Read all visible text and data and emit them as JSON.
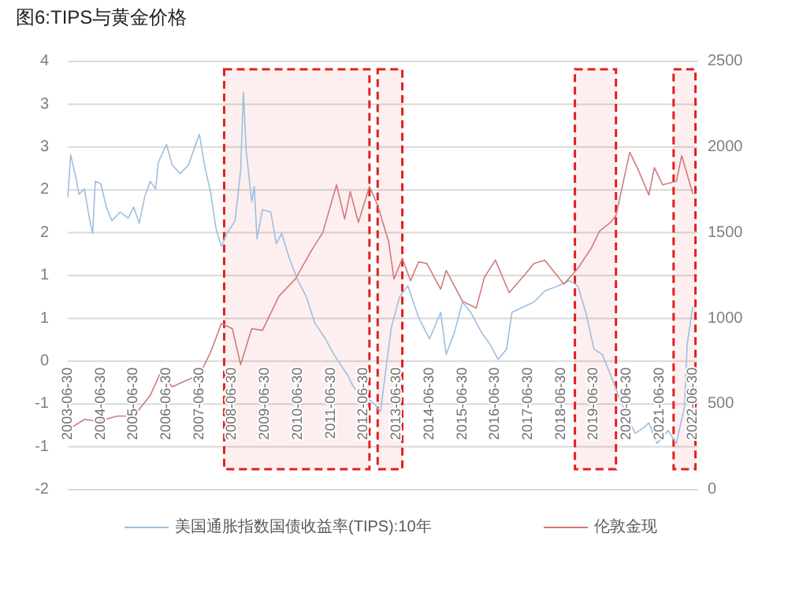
{
  "chart_data": {
    "type": "line",
    "title": "图6:TIPS与黄金价格",
    "xlim": [
      "2003-06-30",
      "2022-08-31"
    ],
    "xticks": [
      "2003-06-30",
      "2004-06-30",
      "2005-06-30",
      "2006-06-30",
      "2007-06-30",
      "2008-06-30",
      "2009-06-30",
      "2010-06-30",
      "2011-06-30",
      "2012-06-30",
      "2013-06-30",
      "2014-06-30",
      "2015-06-30",
      "2016-06-30",
      "2017-06-30",
      "2018-06-30",
      "2019-06-30",
      "2020-06-30",
      "2021-06-30",
      "2022-06-30"
    ],
    "ylim": [
      -1.5,
      3.5
    ],
    "yticks": [
      {
        "value": 3.5,
        "label": "4"
      },
      {
        "value": 3,
        "label": "3"
      },
      {
        "value": 2.5,
        "label": "3"
      },
      {
        "value": 2,
        "label": "2"
      },
      {
        "value": 1.5,
        "label": "2"
      },
      {
        "value": 1,
        "label": "1"
      },
      {
        "value": 0.5,
        "label": "1"
      },
      {
        "value": 0,
        "label": "0"
      },
      {
        "value": -0.5,
        "label": "-1"
      },
      {
        "value": -1,
        "label": "-1"
      },
      {
        "value": -1.5,
        "label": "-2"
      }
    ],
    "y2lim": [
      0,
      2500
    ],
    "y2ticks": [
      0,
      500,
      1000,
      1500,
      2000,
      2500
    ],
    "grid": "y",
    "legend": "bottom",
    "bands": [
      {
        "axis": "x",
        "from": "2008-04",
        "to": "2012-09",
        "color": "#e02020"
      },
      {
        "axis": "x",
        "from": "2012-12",
        "to": "2013-09",
        "color": "#e02020"
      },
      {
        "axis": "x",
        "from": "2018-12",
        "to": "2020-03",
        "color": "#e02020"
      },
      {
        "axis": "x",
        "from": "2021-12",
        "to": "2022-08",
        "color": "#e02020"
      }
    ],
    "series": [
      {
        "name": "美国通胀指数国债收益率(TIPS):10年",
        "color": "#9dbfdf",
        "x": [
          "2003-07",
          "2003-08",
          "2003-10",
          "2003-11",
          "2004-01",
          "2004-03",
          "2004-04",
          "2004-05",
          "2004-07",
          "2004-09",
          "2004-11",
          "2005-02",
          "2005-05",
          "2005-07",
          "2005-09",
          "2005-11",
          "2006-01",
          "2006-03",
          "2006-04",
          "2006-07",
          "2006-09",
          "2006-12",
          "2007-03",
          "2007-07",
          "2007-09",
          "2007-11",
          "2008-01",
          "2008-03",
          "2008-05",
          "2008-08",
          "2008-10",
          "2008-11",
          "2008-12",
          "2009-02",
          "2009-03",
          "2009-04",
          "2009-06",
          "2009-09",
          "2009-11",
          "2010-01",
          "2010-04",
          "2010-07",
          "2010-10",
          "2011-01",
          "2011-05",
          "2011-08",
          "2012-01",
          "2012-03",
          "2012-06",
          "2012-10",
          "2013-01",
          "2013-05",
          "2013-08",
          "2013-11",
          "2014-03",
          "2014-07",
          "2014-11",
          "2015-01",
          "2015-04",
          "2015-07",
          "2015-10",
          "2016-02",
          "2016-05",
          "2016-08",
          "2016-11",
          "2017-01",
          "2017-05",
          "2017-09",
          "2018-01",
          "2018-06",
          "2018-10",
          "2019-01",
          "2019-04",
          "2019-07",
          "2019-10",
          "2020-01",
          "2020-04",
          "2020-07",
          "2020-10",
          "2021-01",
          "2021-03",
          "2021-06",
          "2021-10",
          "2022-01",
          "2022-04",
          "2022-05",
          "2022-07"
        ],
        "values": [
          1.92,
          2.41,
          2.13,
          1.95,
          2.01,
          1.64,
          1.49,
          2.1,
          2.07,
          1.8,
          1.64,
          1.74,
          1.67,
          1.8,
          1.61,
          1.92,
          2.1,
          2.01,
          2.32,
          2.53,
          2.29,
          2.19,
          2.29,
          2.65,
          2.26,
          1.98,
          1.55,
          1.34,
          1.49,
          1.64,
          2.23,
          3.14,
          2.47,
          1.86,
          2.04,
          1.43,
          1.77,
          1.74,
          1.37,
          1.49,
          1.18,
          0.94,
          0.75,
          0.45,
          0.26,
          0.08,
          -0.16,
          -0.29,
          -0.41,
          -0.47,
          -0.59,
          0.39,
          0.75,
          0.88,
          0.51,
          0.26,
          0.57,
          0.08,
          0.33,
          0.69,
          0.57,
          0.33,
          0.2,
          0.02,
          0.14,
          0.57,
          0.63,
          0.69,
          0.82,
          0.88,
          0.94,
          0.88,
          0.57,
          0.14,
          0.08,
          -0.16,
          -0.41,
          -0.65,
          -0.84,
          -0.78,
          -0.72,
          -0.96,
          -0.81,
          -0.96,
          -0.53,
          0.2,
          0.63
        ]
      },
      {
        "name": "伦敦金现",
        "color": "#d27a7a",
        "axis": "y2",
        "x": [
          "2003-07",
          "2004-01",
          "2004-06",
          "2005-01",
          "2005-07",
          "2006-01",
          "2006-05",
          "2006-09",
          "2007-01",
          "2007-07",
          "2007-11",
          "2008-03",
          "2008-07",
          "2008-10",
          "2009-02",
          "2009-06",
          "2009-12",
          "2010-06",
          "2010-12",
          "2011-04",
          "2011-09",
          "2011-12",
          "2012-02",
          "2012-05",
          "2012-09",
          "2012-12",
          "2013-04",
          "2013-06",
          "2013-09",
          "2013-12",
          "2014-03",
          "2014-06",
          "2014-11",
          "2015-01",
          "2015-07",
          "2015-12",
          "2016-03",
          "2016-07",
          "2016-12",
          "2017-06",
          "2017-09",
          "2018-01",
          "2018-08",
          "2019-01",
          "2019-06",
          "2019-09",
          "2020-01",
          "2020-03",
          "2020-08",
          "2020-11",
          "2021-03",
          "2021-05",
          "2021-08",
          "2022-01",
          "2022-03",
          "2022-07"
        ],
        "values": [
          350,
          410,
          400,
          430,
          430,
          550,
          690,
          600,
          630,
          670,
          800,
          970,
          940,
          730,
          940,
          930,
          1130,
          1230,
          1400,
          1500,
          1780,
          1580,
          1740,
          1560,
          1770,
          1660,
          1450,
          1230,
          1350,
          1220,
          1330,
          1320,
          1170,
          1280,
          1100,
          1060,
          1240,
          1340,
          1150,
          1260,
          1320,
          1340,
          1200,
          1290,
          1410,
          1510,
          1560,
          1600,
          1970,
          1870,
          1720,
          1880,
          1780,
          1800,
          1950,
          1730
        ]
      }
    ]
  }
}
